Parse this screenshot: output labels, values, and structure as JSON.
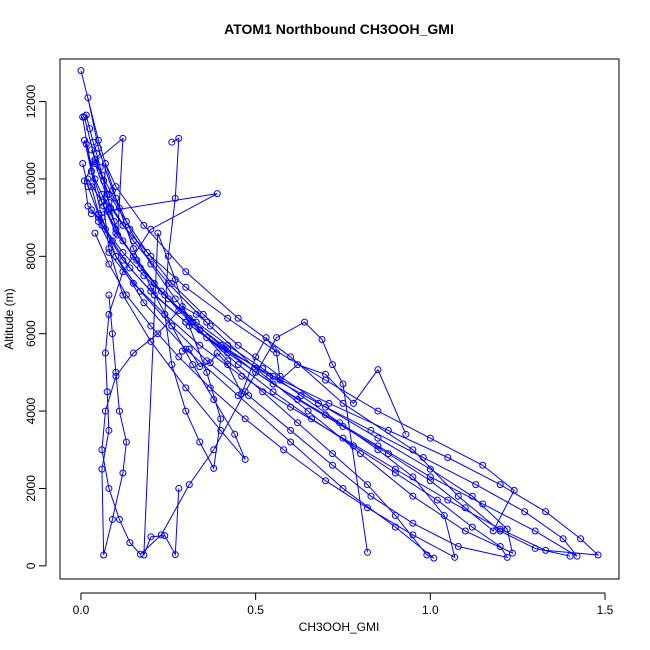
{
  "chart_data": {
    "type": "line",
    "title": "ATOM1 Northbound CH3OOH_GMI",
    "xlabel": "CH3OOH_GMI",
    "ylabel": "Altitude (m)",
    "xlim": [
      -0.06,
      1.54
    ],
    "ylim": [
      -340,
      13100
    ],
    "xticks": [
      0.0,
      0.5,
      1.0,
      1.5
    ],
    "xtick_labels": [
      "0.0",
      "0.5",
      "1.0",
      "1.5"
    ],
    "yticks": [
      0,
      2000,
      4000,
      6000,
      8000,
      10000,
      12000
    ],
    "ytick_labels": [
      "0",
      "2000",
      "4000",
      "6000",
      "8000",
      "10000",
      "12000"
    ],
    "grid": false,
    "legend": "none",
    "series_color": "#0000ff",
    "series": [
      {
        "x": [
          0.0,
          0.05,
          0.1,
          0.15,
          0.2,
          0.26,
          0.32,
          0.38,
          0.44,
          0.47,
          0.4,
          0.3,
          0.2,
          0.12,
          0.08,
          0.065,
          0.07,
          0.1,
          0.18,
          0.3,
          0.45,
          0.6,
          0.75,
          0.95,
          1.08,
          1.2,
          1.3,
          1.4
        ],
        "y": [
          12800,
          11000,
          9500,
          8200,
          7200,
          6200,
          5200,
          4300,
          3400,
          2750,
          3500,
          4600,
          5800,
          7000,
          8200,
          9300,
          10400,
          9800,
          8800,
          7600,
          6400,
          5400,
          4200,
          3000,
          1800,
          900,
          450,
          250
        ]
      },
      {
        "x": [
          0.02,
          0.05,
          0.09,
          0.14,
          0.2,
          0.27,
          0.34,
          0.42,
          0.52,
          0.62,
          0.72,
          0.82,
          0.9,
          0.99,
          1.01,
          0.9,
          0.75,
          0.6,
          0.45,
          0.3,
          0.18,
          0.1,
          0.06,
          0.03,
          0.005
        ],
        "y": [
          12100,
          10800,
          9700,
          8700,
          7800,
          6900,
          6100,
          5300,
          4500,
          3700,
          2900,
          2100,
          1300,
          280,
          200,
          1000,
          2000,
          3200,
          4400,
          5600,
          6800,
          8000,
          9000,
          10200,
          11600
        ]
      },
      {
        "x": [
          0.01,
          0.04,
          0.08,
          0.13,
          0.19,
          0.26,
          0.35,
          0.45,
          0.57,
          0.7,
          0.85,
          1.0,
          1.12,
          1.22,
          1.235,
          1.1,
          0.95,
          0.8,
          0.65,
          0.5,
          0.37,
          0.25,
          0.15,
          0.08,
          0.04
        ],
        "y": [
          11600,
          10500,
          9600,
          8900,
          8100,
          7300,
          6500,
          5700,
          4900,
          4100,
          3300,
          2500,
          1800,
          950,
          330,
          900,
          1800,
          2900,
          4000,
          5100,
          6200,
          7300,
          8400,
          9400,
          10400
        ]
      },
      {
        "x": [
          0.01,
          0.03,
          0.06,
          0.1,
          0.16,
          0.23,
          0.31,
          0.4,
          0.5,
          0.62,
          0.75,
          0.88,
          1.0,
          1.1,
          1.18,
          1.24,
          1.15,
          1.0,
          0.85,
          0.7,
          0.55,
          0.42,
          0.3,
          0.2,
          0.12,
          0.06
        ],
        "y": [
          11000,
          10200,
          9400,
          8600,
          7900,
          7100,
          6400,
          5700,
          5000,
          4300,
          3600,
          2900,
          2200,
          1500,
          900,
          1950,
          2600,
          3300,
          4000,
          4800,
          5600,
          6400,
          7200,
          8000,
          8800,
          9600
        ]
      },
      {
        "x": [
          0.015,
          0.04,
          0.08,
          0.12,
          0.17,
          0.24,
          0.32,
          0.42,
          0.54,
          0.68,
          0.83,
          0.98,
          1.13,
          1.27,
          1.38,
          1.42,
          1.3,
          1.15,
          1.0,
          0.85,
          0.7,
          0.55,
          0.42,
          0.3,
          0.2,
          0.12,
          0.06,
          0.03
        ],
        "y": [
          10900,
          10000,
          9200,
          8400,
          7700,
          7000,
          6300,
          5600,
          4900,
          4200,
          3500,
          2800,
          2100,
          1400,
          700,
          250,
          900,
          1600,
          2300,
          3100,
          3900,
          4700,
          5500,
          6300,
          7100,
          7900,
          8800,
          9800
        ]
      },
      {
        "x": [
          0.005,
          0.02,
          0.05,
          0.09,
          0.14,
          0.21,
          0.3,
          0.41,
          0.55,
          0.71,
          0.88,
          1.05,
          1.2,
          1.33,
          1.43,
          1.48,
          1.33,
          1.2,
          1.05,
          0.9,
          0.75,
          0.6,
          0.46,
          0.34,
          0.24,
          0.15,
          0.08
        ],
        "y": [
          10400,
          9800,
          9100,
          8400,
          7700,
          7000,
          6300,
          5600,
          4900,
          4200,
          3500,
          2800,
          2100,
          1400,
          700,
          280,
          400,
          950,
          1700,
          2500,
          3300,
          4100,
          4900,
          5700,
          6500,
          7300,
          8100
        ]
      },
      {
        "x": [
          0.02,
          0.06,
          0.1,
          0.15,
          0.21,
          0.28,
          0.36,
          0.45,
          0.55,
          0.66,
          0.78,
          0.9,
          1.02,
          1.12,
          1.2,
          1.22,
          1.08,
          0.95,
          0.83,
          0.72,
          0.6,
          0.48,
          0.36,
          0.26,
          0.17,
          0.1,
          0.05
        ],
        "y": [
          10000,
          9400,
          8700,
          8000,
          7300,
          6600,
          5900,
          5200,
          4500,
          3800,
          3100,
          2400,
          1700,
          1000,
          500,
          220,
          500,
          1100,
          1800,
          2600,
          3500,
          4400,
          5300,
          6200,
          7100,
          8000,
          8900
        ]
      },
      {
        "x": [
          0.03,
          0.07,
          0.12,
          0.18,
          0.25,
          0.33,
          0.42,
          0.52,
          0.63,
          0.74,
          0.85,
          0.95,
          1.04,
          1.07,
          0.95,
          0.82,
          0.7,
          0.58,
          0.47,
          0.37,
          0.28,
          0.2,
          0.13,
          0.08,
          0.04
        ],
        "y": [
          9200,
          8700,
          8100,
          7500,
          6900,
          6300,
          5700,
          5100,
          4400,
          3700,
          3000,
          2300,
          1300,
          220,
          800,
          1500,
          2200,
          3000,
          3800,
          4600,
          5400,
          6200,
          7000,
          7800,
          8600
        ]
      },
      {
        "x": [
          0.03,
          0.39,
          0.2,
          0.12,
          0.08,
          0.07,
          0.075,
          0.08,
          0.06,
          0.065,
          0.09,
          0.12,
          0.13,
          0.11,
          0.1,
          0.09,
          0.08
        ],
        "y": [
          9100,
          9620,
          8700,
          7600,
          6500,
          5500,
          4500,
          3500,
          2500,
          280,
          1200,
          2400,
          3200,
          4000,
          5000,
          6000,
          7000
        ]
      },
      {
        "x": [
          0.26,
          0.28,
          0.27,
          0.25,
          0.24,
          0.26,
          0.3,
          0.34,
          0.38,
          0.4,
          0.36,
          0.31,
          0.27,
          0.22,
          0.18,
          0.2,
          0.24,
          0.27,
          0.28
        ],
        "y": [
          10950,
          11050,
          9500,
          8000,
          6500,
          5200,
          4000,
          3200,
          2520,
          3800,
          5000,
          6200,
          7400,
          8600,
          280,
          750,
          780,
          290,
          2000
        ]
      },
      {
        "x": [
          0.36,
          0.33,
          0.29,
          0.22,
          0.15,
          0.1,
          0.07,
          0.06,
          0.08,
          0.11,
          0.14,
          0.17,
          0.23,
          0.31,
          0.38,
          0.47,
          0.56,
          0.64,
          0.69,
          0.72,
          0.75,
          0.82
        ],
        "y": [
          6300,
          6500,
          6700,
          6000,
          5500,
          4900,
          4000,
          3000,
          2000,
          1200,
          600,
          300,
          800,
          2100,
          3000,
          4500,
          5900,
          6300,
          5850,
          5200,
          4700,
          350
        ]
      },
      {
        "x": [
          0.29,
          0.31,
          0.34,
          0.37,
          0.39,
          0.42,
          0.46,
          0.5,
          0.53,
          0.56,
          0.57,
          0.62,
          0.7,
          0.78,
          0.85,
          0.93
        ],
        "y": [
          5550,
          5600,
          5150,
          5250,
          5500,
          5200,
          4450,
          5400,
          5900,
          5500,
          4800,
          5200,
          4950,
          4200,
          5070,
          3400
        ]
      },
      {
        "x": [
          0.015,
          0.025,
          0.035,
          0.045,
          0.055,
          0.065,
          0.075,
          0.085,
          0.095,
          0.105,
          0.12,
          0.04,
          0.01,
          0.02,
          0.05,
          0.08,
          0.11,
          0.06,
          0.03
        ],
        "y": [
          11650,
          11300,
          10950,
          10650,
          10300,
          9950,
          9600,
          9250,
          8900,
          8550,
          11050,
          10450,
          9950,
          9300,
          9000,
          9150,
          9250,
          10100,
          10750
        ]
      }
    ]
  }
}
